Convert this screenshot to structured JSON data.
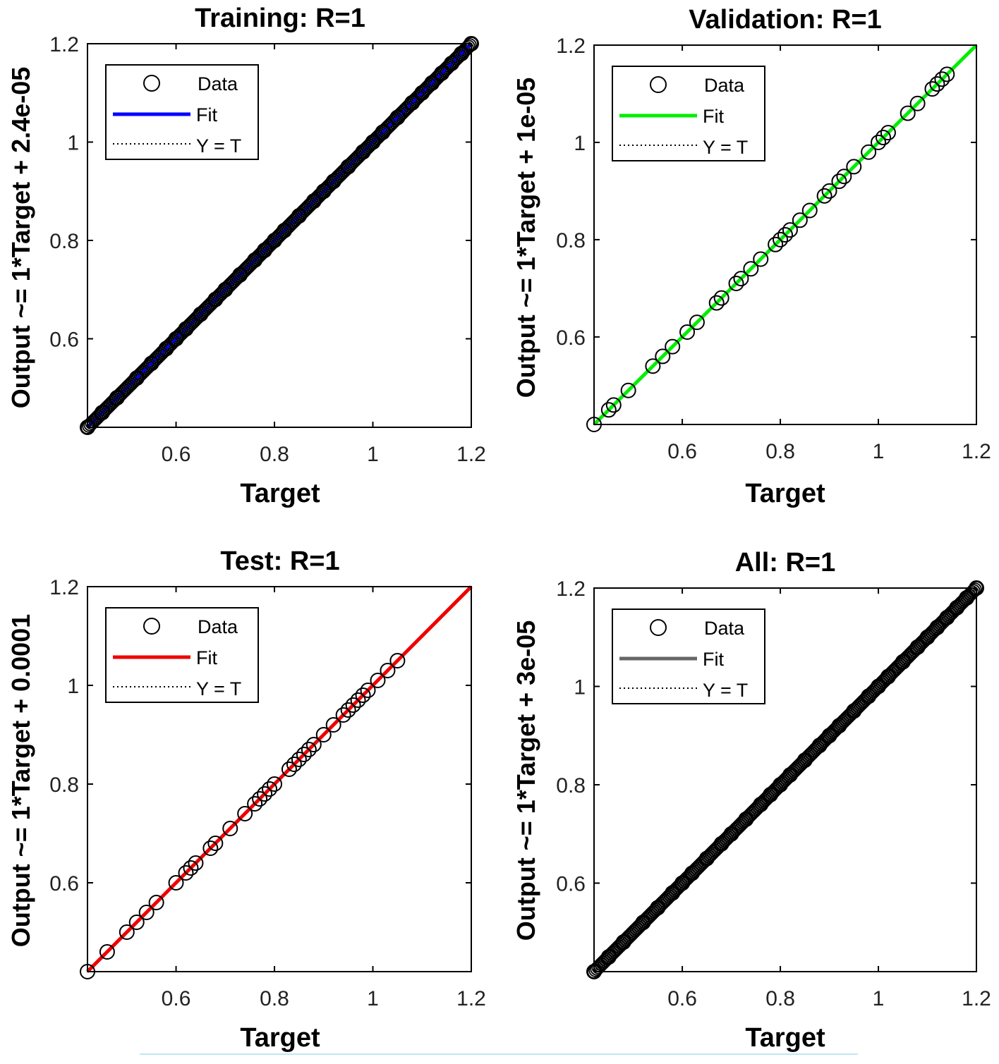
{
  "chart_data": [
    {
      "type": "scatter",
      "title": "Training: R=1",
      "xlabel": "Target",
      "ylabel": "Output ~= 1*Target + 2.4e-05",
      "xlim": [
        0.42,
        1.2
      ],
      "ylim": [
        0.42,
        1.2
      ],
      "xticks": [
        "0.6",
        "0.8",
        "1",
        "1.2"
      ],
      "yticks": [
        "0.6",
        "0.8",
        "1",
        "1.2"
      ],
      "fit_color": "#0000ff",
      "fit": {
        "slope": 1,
        "intercept": 2.4e-05
      },
      "legend": {
        "position": "top-left",
        "entries": [
          "Data",
          "Fit",
          "Y = T"
        ]
      },
      "density": "dense",
      "series": [
        {
          "x": [
            0.42,
            0.45,
            0.48,
            0.52,
            0.55,
            0.58,
            0.6,
            0.62,
            0.65,
            0.68,
            0.7,
            0.73,
            0.76,
            0.78,
            0.8,
            0.82,
            0.85,
            0.88,
            0.9,
            0.92,
            0.95,
            0.98,
            1.0,
            1.02,
            1.05,
            1.08,
            1.1,
            1.12,
            1.14,
            1.16,
            1.18,
            1.2
          ],
          "y": [
            0.42,
            0.45,
            0.48,
            0.52,
            0.55,
            0.58,
            0.6,
            0.62,
            0.65,
            0.68,
            0.7,
            0.73,
            0.76,
            0.78,
            0.8,
            0.82,
            0.85,
            0.88,
            0.9,
            0.92,
            0.95,
            0.98,
            1.0,
            1.02,
            1.05,
            1.08,
            1.1,
            1.12,
            1.14,
            1.16,
            1.18,
            1.2
          ]
        }
      ]
    },
    {
      "type": "scatter",
      "title": "Validation: R=1",
      "xlabel": "Target",
      "ylabel": "Output ~= 1*Target + 1e-05",
      "xlim": [
        0.42,
        1.2
      ],
      "ylim": [
        0.42,
        1.2
      ],
      "xticks": [
        "0.6",
        "0.8",
        "1",
        "1.2"
      ],
      "yticks": [
        "0.6",
        "0.8",
        "1",
        "1.2"
      ],
      "fit_color": "#00ee00",
      "fit": {
        "slope": 1,
        "intercept": 1e-05
      },
      "legend": {
        "position": "top-left",
        "entries": [
          "Data",
          "Fit",
          "Y = T"
        ]
      },
      "density": "sparse",
      "series": [
        {
          "x": [
            0.42,
            0.45,
            0.46,
            0.49,
            0.54,
            0.56,
            0.58,
            0.61,
            0.63,
            0.67,
            0.68,
            0.71,
            0.72,
            0.74,
            0.76,
            0.79,
            0.8,
            0.81,
            0.82,
            0.84,
            0.86,
            0.89,
            0.9,
            0.92,
            0.93,
            0.95,
            0.98,
            1.0,
            1.01,
            1.02,
            1.06,
            1.08,
            1.11,
            1.12,
            1.13,
            1.14
          ],
          "y": [
            0.42,
            0.45,
            0.46,
            0.49,
            0.54,
            0.56,
            0.58,
            0.61,
            0.63,
            0.67,
            0.68,
            0.71,
            0.72,
            0.74,
            0.76,
            0.79,
            0.8,
            0.81,
            0.82,
            0.84,
            0.86,
            0.89,
            0.9,
            0.92,
            0.93,
            0.95,
            0.98,
            1.0,
            1.01,
            1.02,
            1.06,
            1.08,
            1.11,
            1.12,
            1.13,
            1.14
          ]
        }
      ]
    },
    {
      "type": "scatter",
      "title": "Test: R=1",
      "xlabel": "Target",
      "ylabel": "Output ~= 1*Target + 0.0001",
      "xlim": [
        0.42,
        1.2
      ],
      "ylim": [
        0.42,
        1.2
      ],
      "xticks": [
        "0.6",
        "0.8",
        "1",
        "1.2"
      ],
      "yticks": [
        "0.6",
        "0.8",
        "1",
        "1.2"
      ],
      "fit_color": "#ee0000",
      "fit": {
        "slope": 1,
        "intercept": 0.0001
      },
      "legend": {
        "position": "top-left",
        "entries": [
          "Data",
          "Fit",
          "Y = T"
        ]
      },
      "density": "sparse",
      "series": [
        {
          "x": [
            0.42,
            0.46,
            0.5,
            0.52,
            0.54,
            0.56,
            0.6,
            0.62,
            0.63,
            0.64,
            0.67,
            0.68,
            0.71,
            0.74,
            0.76,
            0.77,
            0.78,
            0.79,
            0.8,
            0.83,
            0.84,
            0.85,
            0.86,
            0.87,
            0.88,
            0.9,
            0.92,
            0.94,
            0.95,
            0.96,
            0.97,
            0.98,
            0.99,
            1.01,
            1.03,
            1.05
          ],
          "y": [
            0.42,
            0.46,
            0.5,
            0.52,
            0.54,
            0.56,
            0.6,
            0.62,
            0.63,
            0.64,
            0.67,
            0.68,
            0.71,
            0.74,
            0.76,
            0.77,
            0.78,
            0.79,
            0.8,
            0.83,
            0.84,
            0.85,
            0.86,
            0.87,
            0.88,
            0.9,
            0.92,
            0.94,
            0.95,
            0.96,
            0.97,
            0.98,
            0.99,
            1.01,
            1.03,
            1.05
          ]
        }
      ]
    },
    {
      "type": "scatter",
      "title": "All: R=1",
      "xlabel": "Target",
      "ylabel": "Output ~= 1*Target + 3e-05",
      "xlim": [
        0.42,
        1.2
      ],
      "ylim": [
        0.42,
        1.2
      ],
      "xticks": [
        "0.6",
        "0.8",
        "1",
        "1.2"
      ],
      "yticks": [
        "0.6",
        "0.8",
        "1",
        "1.2"
      ],
      "fit_color": "#666666",
      "fit": {
        "slope": 1,
        "intercept": 3e-05
      },
      "legend": {
        "position": "top-left",
        "entries": [
          "Data",
          "Fit",
          "Y = T"
        ]
      },
      "density": "dense",
      "series": [
        {
          "x": [
            0.42,
            0.45,
            0.48,
            0.52,
            0.55,
            0.58,
            0.6,
            0.62,
            0.65,
            0.68,
            0.7,
            0.73,
            0.76,
            0.78,
            0.8,
            0.82,
            0.85,
            0.88,
            0.9,
            0.92,
            0.95,
            0.98,
            1.0,
            1.02,
            1.05,
            1.08,
            1.1,
            1.12,
            1.14,
            1.16,
            1.18,
            1.2
          ],
          "y": [
            0.42,
            0.45,
            0.48,
            0.52,
            0.55,
            0.58,
            0.6,
            0.62,
            0.65,
            0.68,
            0.7,
            0.73,
            0.76,
            0.78,
            0.8,
            0.82,
            0.85,
            0.88,
            0.9,
            0.92,
            0.95,
            0.98,
            1.0,
            1.02,
            1.05,
            1.08,
            1.1,
            1.12,
            1.14,
            1.16,
            1.18,
            1.2
          ]
        }
      ]
    }
  ]
}
